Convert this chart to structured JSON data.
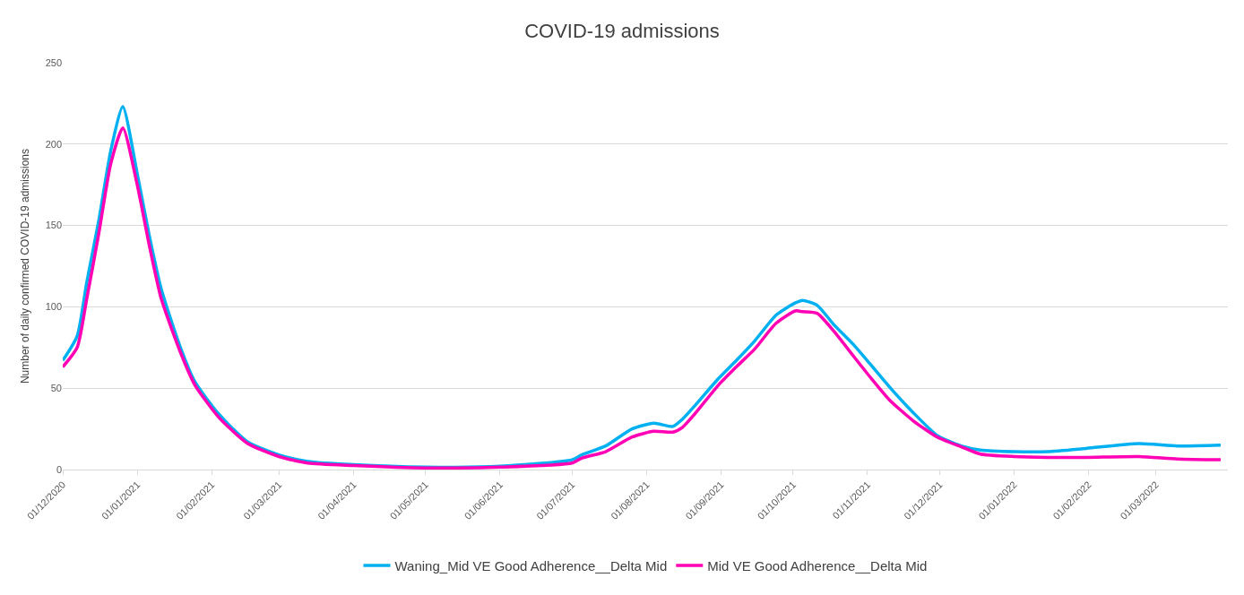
{
  "chart_data": {
    "type": "line",
    "title": "COVID-19 admissions",
    "ylabel": "Number of daily confirmed COVID-19 admissions",
    "x": [
      "2020-12-01",
      "2020-12-07",
      "2020-12-11",
      "2020-12-16",
      "2020-12-21",
      "2020-12-26",
      "2021-01-01",
      "2021-01-06",
      "2021-01-11",
      "2021-01-19",
      "2021-01-25",
      "2021-02-04",
      "2021-02-16",
      "2021-03-01",
      "2021-03-13",
      "2021-04-01",
      "2021-05-01",
      "2021-06-01",
      "2021-07-01",
      "2021-07-05",
      "2021-07-15",
      "2021-07-26",
      "2021-08-04",
      "2021-08-12",
      "2021-08-16",
      "2021-08-21",
      "2021-08-31",
      "2021-09-08",
      "2021-09-15",
      "2021-09-24",
      "2021-10-02",
      "2021-10-05",
      "2021-10-11",
      "2021-10-18",
      "2021-10-26",
      "2021-11-02",
      "2021-11-10",
      "2021-11-20",
      "2021-11-30",
      "2021-12-10",
      "2021-12-18",
      "2022-01-01",
      "2022-01-15",
      "2022-01-31",
      "2022-02-22",
      "2022-03-10",
      "2022-03-28"
    ],
    "series": [
      {
        "name": "Waning_Mid VE Good Adherence__Delta Mid",
        "color": "#00b0f0",
        "values": [
          67,
          82,
          115,
          153,
          196,
          223,
          182,
          144,
          111,
          75,
          54,
          34,
          17,
          9,
          5,
          3,
          1.5,
          2,
          6,
          9,
          14.5,
          25,
          28.5,
          26.5,
          31,
          39,
          56,
          68,
          79,
          95,
          102.5,
          104,
          101,
          89,
          77,
          65,
          51,
          35,
          21,
          14.5,
          12,
          11,
          11,
          13,
          16,
          14.5,
          15
        ]
      },
      {
        "name": "Mid VE Good Adherence__Delta Mid",
        "color": "#ff00b4",
        "values": [
          63,
          75,
          105,
          145,
          188,
          210,
          175,
          138,
          105,
          72,
          52,
          32,
          16,
          8,
          4,
          2.5,
          1,
          1.5,
          4,
          7,
          11,
          20,
          23.5,
          23,
          26,
          34,
          52,
          64,
          74,
          90,
          97.5,
          97,
          96,
          85,
          70,
          57,
          43,
          30,
          20,
          14,
          9.5,
          8,
          7.5,
          7.5,
          8,
          6.5,
          6
        ]
      }
    ],
    "xlim": [
      "2020-12-01",
      "2022-03-31"
    ],
    "xticks": [
      {
        "value": "2020-12-01",
        "label": "01/12/2020"
      },
      {
        "value": "2021-01-01",
        "label": "01/01/2021"
      },
      {
        "value": "2021-02-01",
        "label": "01/02/2021"
      },
      {
        "value": "2021-03-01",
        "label": "01/03/2021"
      },
      {
        "value": "2021-04-01",
        "label": "01/04/2021"
      },
      {
        "value": "2021-05-01",
        "label": "01/05/2021"
      },
      {
        "value": "2021-06-01",
        "label": "01/06/2021"
      },
      {
        "value": "2021-07-01",
        "label": "01/07/2021"
      },
      {
        "value": "2021-08-01",
        "label": "01/08/2021"
      },
      {
        "value": "2021-09-01",
        "label": "01/09/2021"
      },
      {
        "value": "2021-10-01",
        "label": "01/10/2021"
      },
      {
        "value": "2021-11-01",
        "label": "01/11/2021"
      },
      {
        "value": "2021-12-01",
        "label": "01/12/2021"
      },
      {
        "value": "2022-01-01",
        "label": "01/01/2022"
      },
      {
        "value": "2022-02-01",
        "label": "01/02/2022"
      },
      {
        "value": "2022-03-01",
        "label": "01/03/2022"
      }
    ],
    "ylim": [
      0,
      250
    ],
    "yticks": [
      0,
      50,
      100,
      150,
      200,
      250
    ],
    "grid": "y",
    "legend": "bottom",
    "marker": "none",
    "line_style": "solid"
  }
}
